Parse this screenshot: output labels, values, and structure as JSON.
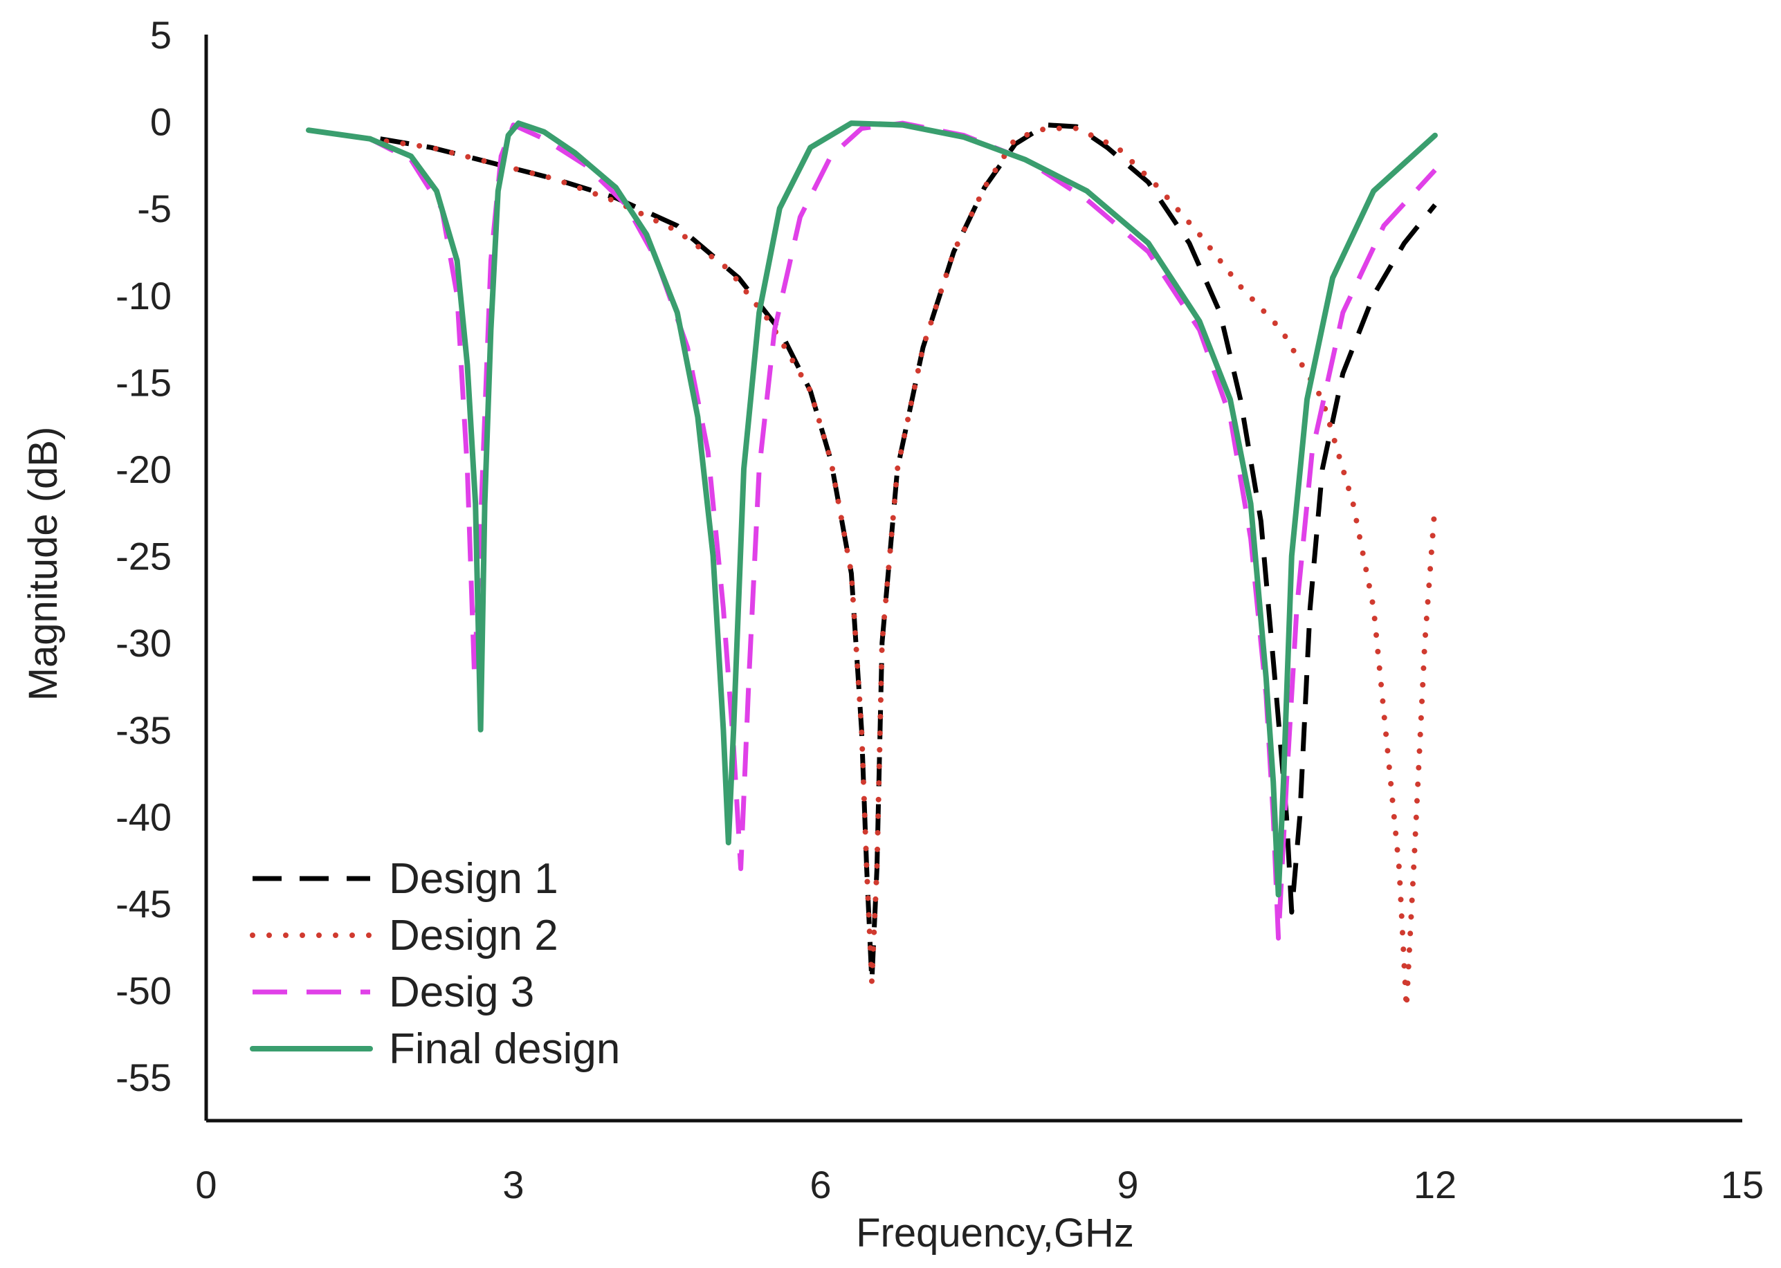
{
  "chart_data": {
    "type": "line",
    "title": "",
    "xlabel": "Frequency,GHz",
    "ylabel": "Magnitude (dB)",
    "xlim": [
      0,
      15
    ],
    "ylim": [
      -57.5,
      5
    ],
    "xticks": [
      0,
      3,
      6,
      9,
      12,
      15
    ],
    "yticks": [
      5,
      0,
      -5,
      -10,
      -15,
      -20,
      -25,
      -30,
      -35,
      -40,
      -45,
      -50,
      -55
    ],
    "grid": false,
    "legend_position": "bottom-left",
    "series": [
      {
        "name": "Design 1",
        "color": "#000000",
        "dash": "long-dash",
        "points": [
          [
            1.7,
            -1.0
          ],
          [
            2.2,
            -1.5
          ],
          [
            2.8,
            -2.4
          ],
          [
            3.4,
            -3.3
          ],
          [
            4.0,
            -4.4
          ],
          [
            4.6,
            -6.0
          ],
          [
            5.2,
            -9.0
          ],
          [
            5.6,
            -12.0
          ],
          [
            5.9,
            -15.5
          ],
          [
            6.1,
            -19.5
          ],
          [
            6.3,
            -26.0
          ],
          [
            6.4,
            -35.0
          ],
          [
            6.45,
            -43.0
          ],
          [
            6.5,
            -49.5
          ],
          [
            6.55,
            -43.0
          ],
          [
            6.6,
            -30.0
          ],
          [
            6.75,
            -20.0
          ],
          [
            7.0,
            -13.0
          ],
          [
            7.3,
            -7.5
          ],
          [
            7.6,
            -3.8
          ],
          [
            7.9,
            -1.3
          ],
          [
            8.2,
            -0.2
          ],
          [
            8.5,
            -0.3
          ],
          [
            8.8,
            -1.5
          ],
          [
            9.2,
            -3.5
          ],
          [
            9.6,
            -7.0
          ],
          [
            9.9,
            -11.0
          ],
          [
            10.1,
            -16.0
          ],
          [
            10.3,
            -23.0
          ],
          [
            10.45,
            -33.0
          ],
          [
            10.55,
            -40.0
          ],
          [
            10.6,
            -45.5
          ],
          [
            10.68,
            -40.0
          ],
          [
            10.78,
            -28.0
          ],
          [
            10.9,
            -20.0
          ],
          [
            11.1,
            -14.5
          ],
          [
            11.4,
            -10.0
          ],
          [
            11.7,
            -7.0
          ],
          [
            12.0,
            -4.8
          ]
        ]
      },
      {
        "name": "Design 2",
        "color": "#d03a2f",
        "dash": "dot",
        "points": [
          [
            1.6,
            -1.0
          ],
          [
            2.2,
            -1.5
          ],
          [
            2.8,
            -2.4
          ],
          [
            3.4,
            -3.3
          ],
          [
            4.0,
            -4.6
          ],
          [
            4.6,
            -6.3
          ],
          [
            5.1,
            -8.5
          ],
          [
            5.5,
            -11.5
          ],
          [
            5.9,
            -15.5
          ],
          [
            6.1,
            -19.5
          ],
          [
            6.3,
            -26.0
          ],
          [
            6.4,
            -35.0
          ],
          [
            6.45,
            -43.0
          ],
          [
            6.5,
            -49.5
          ],
          [
            6.55,
            -43.0
          ],
          [
            6.6,
            -30.0
          ],
          [
            6.75,
            -20.0
          ],
          [
            7.0,
            -13.0
          ],
          [
            7.3,
            -7.5
          ],
          [
            7.6,
            -3.8
          ],
          [
            7.9,
            -1.0
          ],
          [
            8.2,
            -0.4
          ],
          [
            8.5,
            -0.4
          ],
          [
            8.9,
            -1.5
          ],
          [
            9.3,
            -3.8
          ],
          [
            9.7,
            -6.5
          ],
          [
            10.1,
            -9.5
          ],
          [
            10.5,
            -12.0
          ],
          [
            10.9,
            -16.0
          ],
          [
            11.2,
            -22.0
          ],
          [
            11.4,
            -28.0
          ],
          [
            11.55,
            -37.0
          ],
          [
            11.65,
            -43.0
          ],
          [
            11.72,
            -51.0
          ],
          [
            11.8,
            -42.0
          ],
          [
            11.9,
            -30.0
          ],
          [
            12.0,
            -22.0
          ]
        ]
      },
      {
        "name": "Desig 3",
        "color": "#e040e8",
        "dash": "dash",
        "points": [
          [
            1.0,
            -0.5
          ],
          [
            1.6,
            -1.0
          ],
          [
            2.0,
            -2.2
          ],
          [
            2.3,
            -5.0
          ],
          [
            2.45,
            -10.0
          ],
          [
            2.55,
            -20.0
          ],
          [
            2.62,
            -32.0
          ],
          [
            2.7,
            -20.0
          ],
          [
            2.78,
            -8.0
          ],
          [
            2.88,
            -2.0
          ],
          [
            3.0,
            -0.2
          ],
          [
            3.3,
            -1.0
          ],
          [
            3.7,
            -2.5
          ],
          [
            4.1,
            -4.8
          ],
          [
            4.4,
            -8.0
          ],
          [
            4.7,
            -13.0
          ],
          [
            4.9,
            -19.0
          ],
          [
            5.05,
            -28.0
          ],
          [
            5.15,
            -36.0
          ],
          [
            5.22,
            -43.0
          ],
          [
            5.3,
            -32.0
          ],
          [
            5.4,
            -20.0
          ],
          [
            5.55,
            -12.0
          ],
          [
            5.8,
            -5.5
          ],
          [
            6.1,
            -2.0
          ],
          [
            6.4,
            -0.4
          ],
          [
            6.8,
            -0.1
          ],
          [
            7.4,
            -0.8
          ],
          [
            8.0,
            -2.2
          ],
          [
            8.6,
            -4.5
          ],
          [
            9.2,
            -7.5
          ],
          [
            9.7,
            -12.0
          ],
          [
            10.0,
            -17.0
          ],
          [
            10.2,
            -24.0
          ],
          [
            10.35,
            -33.0
          ],
          [
            10.42,
            -40.0
          ],
          [
            10.47,
            -47.0
          ],
          [
            10.55,
            -38.0
          ],
          [
            10.65,
            -28.0
          ],
          [
            10.8,
            -19.0
          ],
          [
            11.1,
            -11.0
          ],
          [
            11.5,
            -6.0
          ],
          [
            12.0,
            -2.8
          ]
        ]
      },
      {
        "name": "Final design",
        "color": "#3a9e6e",
        "dash": "solid",
        "points": [
          [
            1.0,
            -0.5
          ],
          [
            1.6,
            -1.0
          ],
          [
            2.0,
            -2.0
          ],
          [
            2.25,
            -4.0
          ],
          [
            2.45,
            -8.0
          ],
          [
            2.55,
            -14.0
          ],
          [
            2.63,
            -22.0
          ],
          [
            2.68,
            -35.0
          ],
          [
            2.72,
            -22.0
          ],
          [
            2.78,
            -12.0
          ],
          [
            2.85,
            -4.0
          ],
          [
            2.95,
            -0.8
          ],
          [
            3.05,
            -0.1
          ],
          [
            3.3,
            -0.6
          ],
          [
            3.6,
            -1.8
          ],
          [
            4.0,
            -3.8
          ],
          [
            4.3,
            -6.5
          ],
          [
            4.6,
            -11.0
          ],
          [
            4.8,
            -17.0
          ],
          [
            4.95,
            -25.0
          ],
          [
            5.05,
            -35.0
          ],
          [
            5.1,
            -41.5
          ],
          [
            5.15,
            -35.0
          ],
          [
            5.25,
            -20.0
          ],
          [
            5.4,
            -11.0
          ],
          [
            5.6,
            -5.0
          ],
          [
            5.9,
            -1.5
          ],
          [
            6.3,
            -0.1
          ],
          [
            6.8,
            -0.2
          ],
          [
            7.4,
            -0.9
          ],
          [
            8.0,
            -2.2
          ],
          [
            8.6,
            -4.0
          ],
          [
            9.2,
            -7.0
          ],
          [
            9.7,
            -11.5
          ],
          [
            10.0,
            -16.0
          ],
          [
            10.2,
            -22.0
          ],
          [
            10.35,
            -32.0
          ],
          [
            10.42,
            -38.0
          ],
          [
            10.47,
            -44.5
          ],
          [
            10.52,
            -38.0
          ],
          [
            10.6,
            -25.0
          ],
          [
            10.75,
            -16.0
          ],
          [
            11.0,
            -9.0
          ],
          [
            11.4,
            -4.0
          ],
          [
            12.0,
            -0.8
          ]
        ]
      }
    ]
  }
}
